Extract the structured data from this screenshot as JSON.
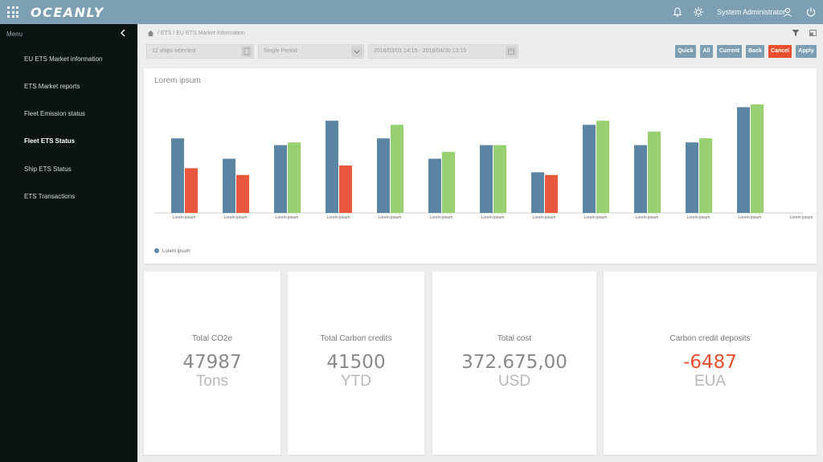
{
  "app": {
    "logo": "OCEANLY"
  },
  "header": {
    "user": "System Administrator"
  },
  "sidebar": {
    "title": "Menu",
    "items": [
      {
        "label": "EU ETS Market information",
        "active": false
      },
      {
        "label": "ETS Market reports",
        "active": false
      },
      {
        "label": "Fleet Emission status",
        "active": false
      },
      {
        "label": "Fleet ETS Status",
        "active": true
      },
      {
        "label": "Ship ETS Status",
        "active": false
      },
      {
        "label": "ETS Transactions",
        "active": false
      }
    ]
  },
  "breadcrumb": "/ ETS / EU ETS Market Information",
  "filters": {
    "ships": "12 ships selected",
    "period": "Single Period",
    "daterange": "2018/03/01 14:15 - 2018/04/30 13:15"
  },
  "buttons": {
    "quick": "Quick",
    "all": "All",
    "current": "Current",
    "back": "Back",
    "cancel": "Cancel",
    "apply": "Apply"
  },
  "colors": {
    "topbar": "#7c9fb3",
    "sidebar": "#0b1412",
    "blue": "#5b85a3",
    "red": "#e8583f",
    "green": "#96d070",
    "cancel": "#e8502f"
  },
  "chart_data": {
    "type": "bar",
    "title": "Lorem ipsum",
    "categories": [
      "Lorem ipsum",
      "Lorem ipsum",
      "Lorem ipsum",
      "Lorem ipsum",
      "Lorem ipsum",
      "Lorem ipsum",
      "Lorem ipsum",
      "Lorem ipsum",
      "Lorem ipsum",
      "Lorem ipsum",
      "Lorem ipsum",
      "Lorem ipsum",
      "Lorem ipsum"
    ],
    "series": [
      {
        "name": "Lorem ipsum",
        "color": "#5b85a3",
        "values": [
          55,
          40,
          50,
          68,
          55,
          40,
          50,
          30,
          65,
          50,
          52,
          78,
          null
        ]
      },
      {
        "color": "#e8583f",
        "values": [
          33,
          28,
          null,
          35,
          null,
          null,
          null,
          28,
          null,
          null,
          null,
          null,
          null
        ]
      },
      {
        "color": "#96d070",
        "values": [
          null,
          null,
          52,
          null,
          65,
          45,
          50,
          null,
          68,
          60,
          55,
          80,
          null
        ]
      }
    ],
    "ylim": [
      0,
      80
    ],
    "legend": "bottom-left",
    "grid": false
  },
  "kpis": [
    {
      "label": "Total CO2e",
      "value": "47987",
      "unit": "Tons",
      "negative": false
    },
    {
      "label": "Total Carbon credits",
      "value": "41500",
      "unit": "YTD",
      "negative": false
    },
    {
      "label": "Total cost",
      "value": "372.675,00",
      "unit": "USD",
      "negative": false
    },
    {
      "label": "Carbon credit deposits",
      "value": "-6487",
      "unit": "EUA",
      "negative": true
    }
  ]
}
